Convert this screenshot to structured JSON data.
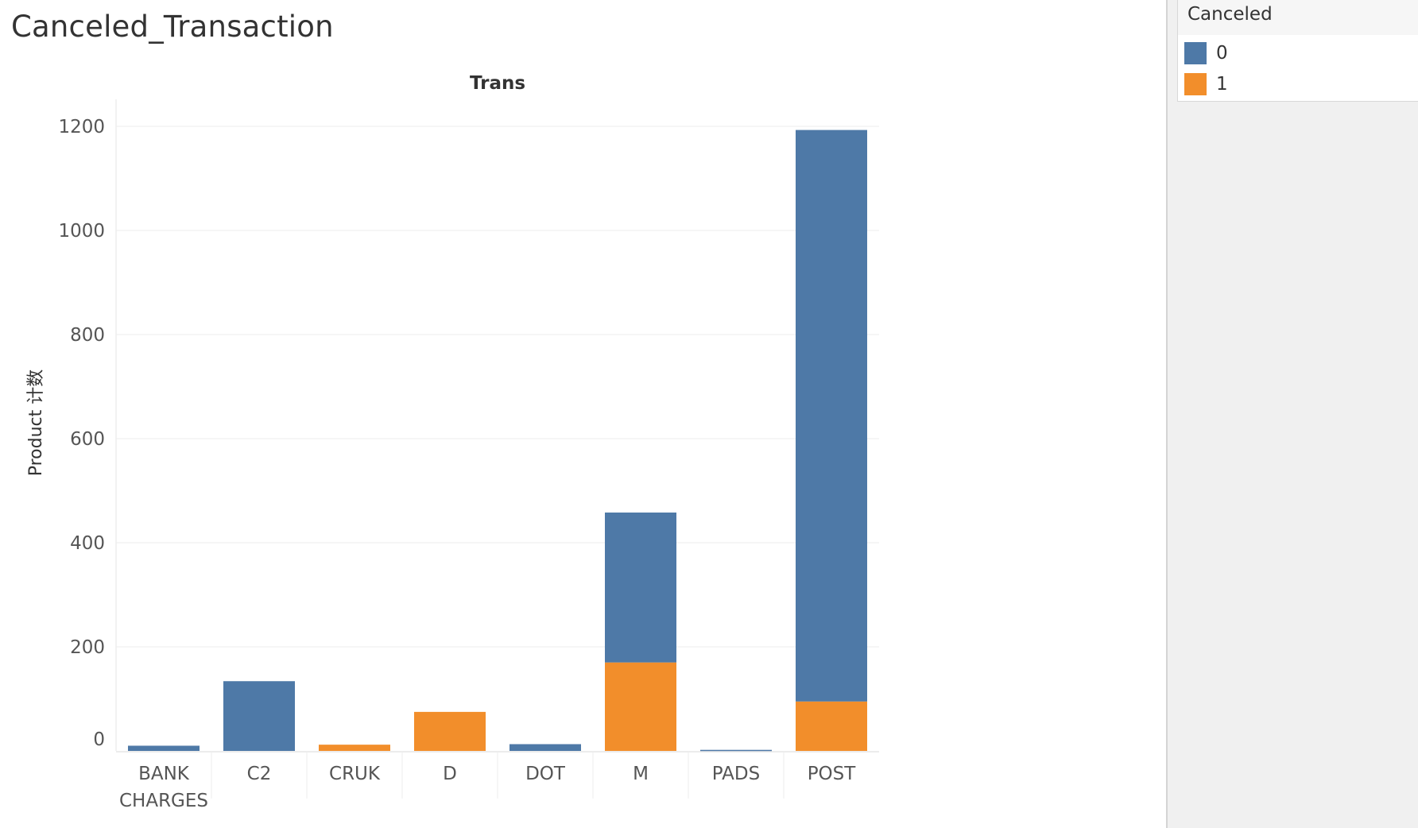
{
  "sheet_title": "Canceled_Transaction",
  "legend": {
    "title": "Canceled",
    "items": [
      {
        "label": "0",
        "color": "#4e79a7"
      },
      {
        "label": "1",
        "color": "#f28e2b"
      }
    ]
  },
  "chart_data": {
    "type": "bar",
    "stacked": true,
    "title": "",
    "column_header": "Trans",
    "xlabel": "",
    "ylabel": "Product 计数",
    "categories": [
      "BANK CHARGES",
      "C2",
      "CRUK",
      "D",
      "DOT",
      "M",
      "PADS",
      "POST"
    ],
    "category_label_lines": [
      [
        "BANK",
        "CHARGES"
      ],
      [
        "C2"
      ],
      [
        "CRUK"
      ],
      [
        "D"
      ],
      [
        "DOT"
      ],
      [
        "M"
      ],
      [
        "PADS"
      ],
      [
        "POST"
      ]
    ],
    "series": [
      {
        "name": "1",
        "color": "#f28e2b",
        "values": [
          0,
          0,
          12,
          75,
          0,
          170,
          0,
          95
        ]
      },
      {
        "name": "0",
        "color": "#4e79a7",
        "values": [
          10,
          134,
          0,
          0,
          13,
          288,
          2,
          1098
        ]
      }
    ],
    "yticks": [
      0,
      200,
      400,
      600,
      800,
      1000,
      1200
    ],
    "ylim": [
      0,
      1200
    ],
    "grid": true,
    "legend_position": "right"
  }
}
